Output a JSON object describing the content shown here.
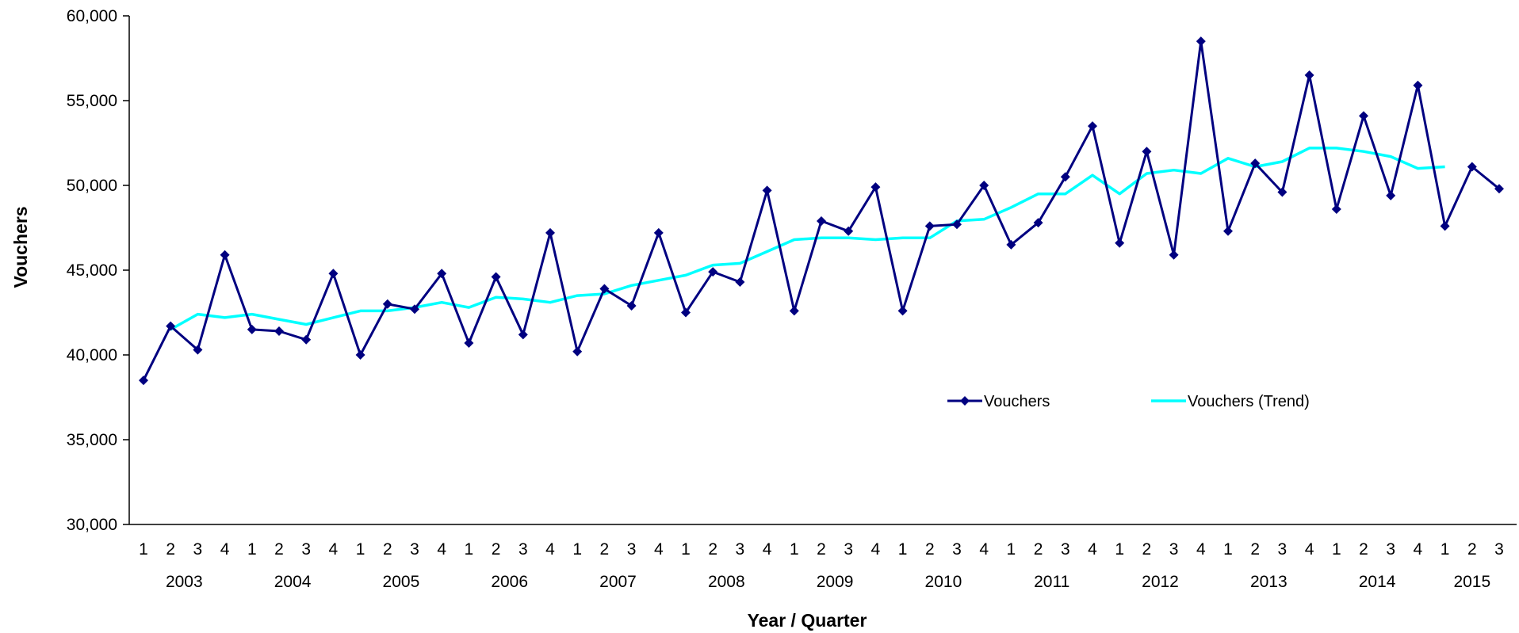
{
  "chart_data": {
    "type": "line",
    "title": "",
    "xlabel": "Year / Quarter",
    "ylabel": "Vouchers",
    "ylim": [
      30000,
      60000
    ],
    "yticks": [
      30000,
      35000,
      40000,
      45000,
      50000,
      55000,
      60000
    ],
    "ytick_labels": [
      "30,000",
      "35,000",
      "40,000",
      "45,000",
      "50,000",
      "55,000",
      "60,000"
    ],
    "years": [
      "2003",
      "2004",
      "2005",
      "2006",
      "2007",
      "2008",
      "2009",
      "2010",
      "2011",
      "2012",
      "2013",
      "2014",
      "2015"
    ],
    "quarters": [
      "1",
      "2",
      "3",
      "4",
      "1",
      "2",
      "3",
      "4",
      "1",
      "2",
      "3",
      "4",
      "1",
      "2",
      "3",
      "4",
      "1",
      "2",
      "3",
      "4",
      "1",
      "2",
      "3",
      "4",
      "1",
      "2",
      "3",
      "4",
      "1",
      "2",
      "3",
      "4",
      "1",
      "2",
      "3",
      "4",
      "1",
      "2",
      "3",
      "4",
      "1",
      "2",
      "3",
      "4",
      "1",
      "2",
      "3",
      "4",
      "1",
      "2",
      "3"
    ],
    "legend_position": "center-right",
    "series": [
      {
        "name": "Vouchers",
        "color": "#000080",
        "marker": "diamond",
        "values": [
          38500,
          41700,
          40300,
          45900,
          41500,
          41400,
          40900,
          44800,
          40000,
          43000,
          42700,
          44800,
          40700,
          44600,
          41200,
          47200,
          40200,
          43900,
          42900,
          47200,
          42500,
          44900,
          44300,
          49700,
          42600,
          47900,
          47300,
          49900,
          42600,
          47600,
          47700,
          50000,
          46500,
          47800,
          50500,
          53500,
          46600,
          52000,
          45900,
          58500,
          47300,
          51300,
          49600,
          56500,
          48600,
          54100,
          49400,
          55900,
          47600,
          51100,
          49800
        ]
      },
      {
        "name": "Vouchers (Trend)",
        "color": "#00FFFF",
        "marker": "none",
        "values": [
          null,
          41500,
          42400,
          42200,
          42400,
          42100,
          41800,
          42200,
          42600,
          42600,
          42800,
          43100,
          42800,
          43400,
          43300,
          43100,
          43500,
          43600,
          44100,
          44400,
          44700,
          45300,
          45400,
          46100,
          46800,
          46900,
          46900,
          46800,
          46900,
          46900,
          47900,
          48000,
          48700,
          49500,
          49500,
          50600,
          49500,
          50700,
          50900,
          50700,
          51600,
          51100,
          51400,
          52200,
          52200,
          52000,
          51700,
          51000,
          51100,
          null,
          null
        ]
      }
    ]
  }
}
